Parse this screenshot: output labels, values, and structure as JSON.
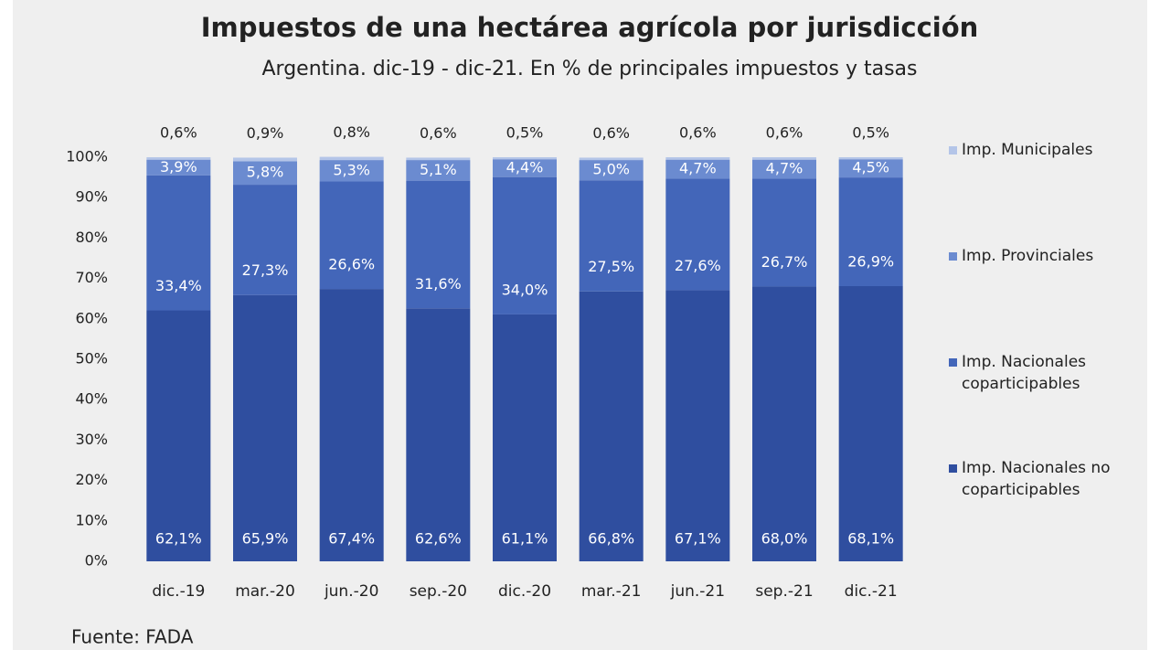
{
  "chart_data": {
    "type": "stacked_bar",
    "title": "Impuestos de una hectárea agrícola por jurisdicción",
    "subtitle": "Argentina. dic-19 - dic-21. En % de principales impuestos y tasas",
    "source": "Fuente: FADA",
    "categories": [
      "dic.-19",
      "mar.-20",
      "jun.-20",
      "sep.-20",
      "dic.-20",
      "mar.-21",
      "jun.-21",
      "sep.-21",
      "dic.-21"
    ],
    "series": [
      {
        "name": "Imp. Nacionales no coparticipables",
        "color": "#2f4e9f",
        "values": [
          62.1,
          65.9,
          67.4,
          62.6,
          61.1,
          66.8,
          67.1,
          68.0,
          68.1
        ],
        "value_labels": [
          "62,1%",
          "65,9%",
          "67,4%",
          "62,6%",
          "61,1%",
          "66,8%",
          "67,1%",
          "68,0%",
          "68,1%"
        ]
      },
      {
        "name": "Imp. Nacionales coparticipables",
        "color": "#4366b9",
        "values": [
          33.4,
          27.3,
          26.6,
          31.6,
          34.0,
          27.5,
          27.6,
          26.7,
          26.9
        ],
        "value_labels": [
          "33,4%",
          "27,3%",
          "26,6%",
          "31,6%",
          "34,0%",
          "27,5%",
          "27,6%",
          "26,7%",
          "26,9%"
        ]
      },
      {
        "name": "Imp. Provinciales",
        "color": "#6b8bd0",
        "values": [
          3.9,
          5.8,
          5.3,
          5.1,
          4.4,
          5.0,
          4.7,
          4.7,
          4.5
        ],
        "value_labels": [
          "3,9%",
          "5,8%",
          "5,3%",
          "5,1%",
          "4,4%",
          "5,0%",
          "4,7%",
          "4,7%",
          "4,5%"
        ]
      },
      {
        "name": "Imp. Municipales",
        "color": "#b4c5e8",
        "values": [
          0.6,
          0.9,
          0.8,
          0.6,
          0.5,
          0.6,
          0.6,
          0.6,
          0.5
        ],
        "value_labels": [
          "0,6%",
          "0,9%",
          "0,8%",
          "0,6%",
          "0,5%",
          "0,6%",
          "0,6%",
          "0,6%",
          "0,5%"
        ]
      }
    ],
    "ylim": [
      0,
      100
    ],
    "yticks": [
      {
        "value": 0,
        "label": "0%"
      },
      {
        "value": 10,
        "label": "10%"
      },
      {
        "value": 20,
        "label": "20%"
      },
      {
        "value": 30,
        "label": "30%"
      },
      {
        "value": 40,
        "label": "40%"
      },
      {
        "value": 50,
        "label": "50%"
      },
      {
        "value": 60,
        "label": "60%"
      },
      {
        "value": 70,
        "label": "70%"
      },
      {
        "value": 80,
        "label": "80%"
      },
      {
        "value": 90,
        "label": "90%"
      },
      {
        "value": 100,
        "label": "100%"
      }
    ],
    "legend": "right"
  }
}
